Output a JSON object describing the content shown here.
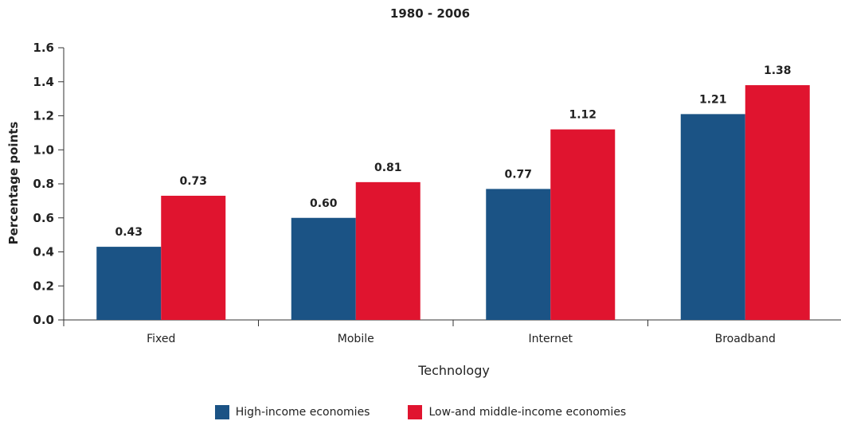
{
  "chart_data": {
    "type": "bar",
    "title": "1980 - 2006",
    "xlabel": "Technology",
    "ylabel": "Percentage points",
    "ylim": [
      0,
      1.6
    ],
    "yticks": [
      "0.0",
      "0.2",
      "0.4",
      "0.6",
      "0.8",
      "1.0",
      "1.2",
      "1.4",
      "1.6"
    ],
    "categories": [
      "Fixed",
      "Mobile",
      "Internet",
      "Broadband"
    ],
    "series": [
      {
        "name": "High-income economies",
        "color": "#1b5385",
        "values": [
          0.43,
          0.6,
          0.77,
          1.21
        ],
        "labels": [
          "0.43",
          "0.60",
          "0.77",
          "1.21"
        ]
      },
      {
        "name": "Low-and middle-income economies",
        "color": "#e0142f",
        "values": [
          0.73,
          0.81,
          1.12,
          1.38
        ],
        "labels": [
          "0.73",
          "0.81",
          "1.12",
          "1.38"
        ]
      }
    ],
    "grid": false,
    "legend": "bottom-center"
  }
}
